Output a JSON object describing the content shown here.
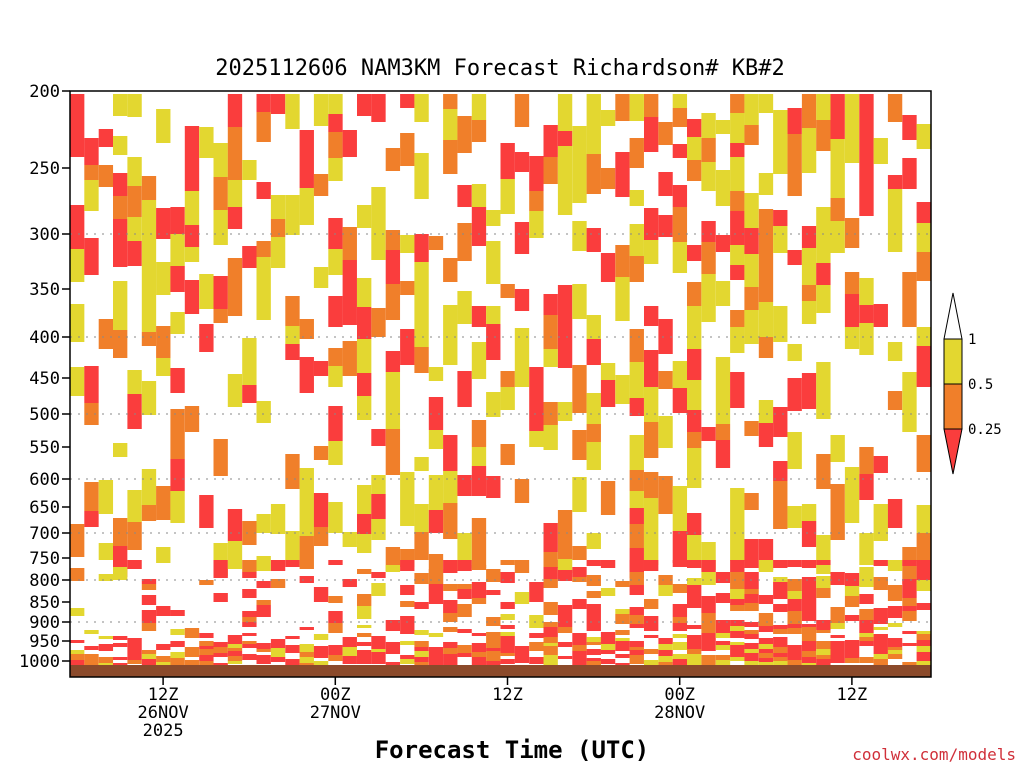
{
  "chart_data": {
    "type": "heatmap",
    "title": "2025112606 NAM3KM Forecast Richardson# KB#2",
    "xlabel": "Forecast Time (UTC)",
    "credit": "coolwx.com/models",
    "y_axis": {
      "scale": "pressure (inverted)",
      "range": [
        1000,
        200
      ],
      "ticks": [
        200,
        250,
        300,
        350,
        400,
        450,
        500,
        550,
        600,
        650,
        700,
        750,
        800,
        850,
        900,
        950,
        1000
      ],
      "dotted_grid_at": [
        300,
        400,
        500,
        600,
        700,
        800,
        900
      ]
    },
    "x_axis": {
      "ticks": [
        {
          "hour": 6,
          "label": "12Z",
          "date": "26NOV",
          "year": "2025"
        },
        {
          "hour": 18,
          "label": "00Z",
          "date": "27NOV",
          "year": ""
        },
        {
          "hour": 30,
          "label": "12Z",
          "date": "",
          "year": ""
        },
        {
          "hour": 42,
          "label": "00Z",
          "date": "28NOV",
          "year": ""
        },
        {
          "hour": 54,
          "label": "12Z",
          "date": "",
          "year": ""
        }
      ],
      "range_hours": [
        0,
        60
      ]
    },
    "legend": {
      "position": "right",
      "levels": [
        {
          "label": "1",
          "color": "#ffffff"
        },
        {
          "label": "0.5",
          "color": "#e3d730"
        },
        {
          "label": "0.25",
          "color": "#f07f2a"
        },
        {
          "label": "",
          "color": "#fa3d3d"
        }
      ]
    },
    "colors": {
      "yellow": "#e3d730",
      "orange": "#f07f2a",
      "red": "#fa3d3d",
      "ground": "#8b4a2b"
    }
  }
}
